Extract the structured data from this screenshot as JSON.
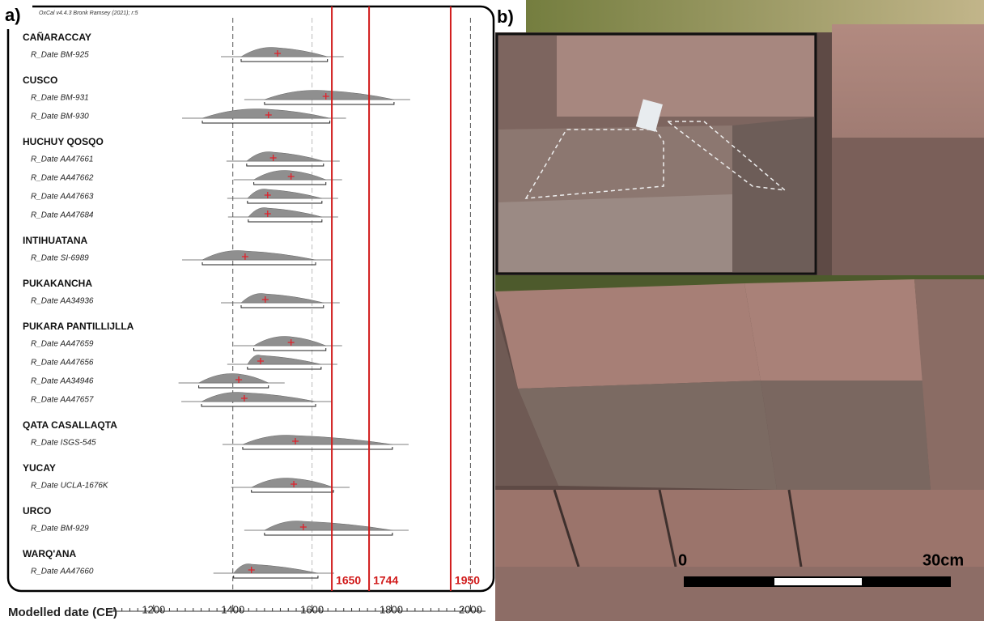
{
  "chart_data": {
    "type": "oxcal",
    "panel_label": "a)",
    "header": "OxCal v4.4.3 Bronk Ramsey (2021); r:5",
    "x_label": "Modelled date (CE)",
    "xlim": [
      1088,
      2038
    ],
    "xticks": [
      1200,
      1400,
      1600,
      1800,
      2000
    ],
    "reference_lines": [
      1650,
      1744,
      1950
    ],
    "reference_color": "#d11c1c",
    "dashed_lines": [
      1400,
      1600,
      2000
    ],
    "groups": [
      {
        "name": "CAÑARACCAY",
        "dates": [
          {
            "label": "R_Date BM-925",
            "low": 1421,
            "median": 1513,
            "high": 1639
          }
        ]
      },
      {
        "name": "CUSCO",
        "dates": [
          {
            "label": "R_Date BM-931",
            "low": 1480,
            "median": 1635,
            "high": 1807
          },
          {
            "label": "R_Date BM-930",
            "low": 1323,
            "median": 1490,
            "high": 1645
          }
        ]
      },
      {
        "name": "HUCHUY QOSQO",
        "dates": [
          {
            "label": "R_Date AA47661",
            "low": 1435,
            "median": 1502,
            "high": 1629
          },
          {
            "label": "R_Date AA47662",
            "low": 1453,
            "median": 1547,
            "high": 1635
          },
          {
            "label": "R_Date AA47663",
            "low": 1437,
            "median": 1488,
            "high": 1625
          },
          {
            "label": "R_Date AA47684",
            "low": 1439,
            "median": 1488,
            "high": 1625
          }
        ]
      },
      {
        "name": "INTIHUATANA",
        "dates": [
          {
            "label": "R_Date SI-6989",
            "low": 1323,
            "median": 1431,
            "high": 1609
          }
        ]
      },
      {
        "name": "PUKAKANCHA",
        "dates": [
          {
            "label": "R_Date AA34936",
            "low": 1421,
            "median": 1482,
            "high": 1629
          }
        ]
      },
      {
        "name": "PUKARA PANTILLIJLLA",
        "dates": [
          {
            "label": "R_Date AA47659",
            "low": 1453,
            "median": 1547,
            "high": 1635
          },
          {
            "label": "R_Date AA47656",
            "low": 1437,
            "median": 1470,
            "high": 1623
          },
          {
            "label": "R_Date AA34946",
            "low": 1314,
            "median": 1415,
            "high": 1490
          },
          {
            "label": "R_Date AA47657",
            "low": 1321,
            "median": 1429,
            "high": 1609
          }
        ]
      },
      {
        "name": "QATA CASALLAQTA",
        "dates": [
          {
            "label": "R_Date ISGS-545",
            "low": 1425,
            "median": 1558,
            "high": 1803
          }
        ]
      },
      {
        "name": "YUCAY",
        "dates": [
          {
            "label": "R_Date UCLA-1676K",
            "low": 1447,
            "median": 1554,
            "high": 1654
          }
        ]
      },
      {
        "name": "URCO",
        "dates": [
          {
            "label": "R_Date BM-929",
            "low": 1480,
            "median": 1578,
            "high": 1803
          }
        ]
      },
      {
        "name": "WARQ'ANA",
        "dates": [
          {
            "label": "R_Date AA47660",
            "low": 1402,
            "median": 1447,
            "high": 1615
          }
        ]
      }
    ]
  },
  "photo": {
    "panel_label": "b)",
    "scale_start": "0",
    "scale_end": "30cm"
  }
}
